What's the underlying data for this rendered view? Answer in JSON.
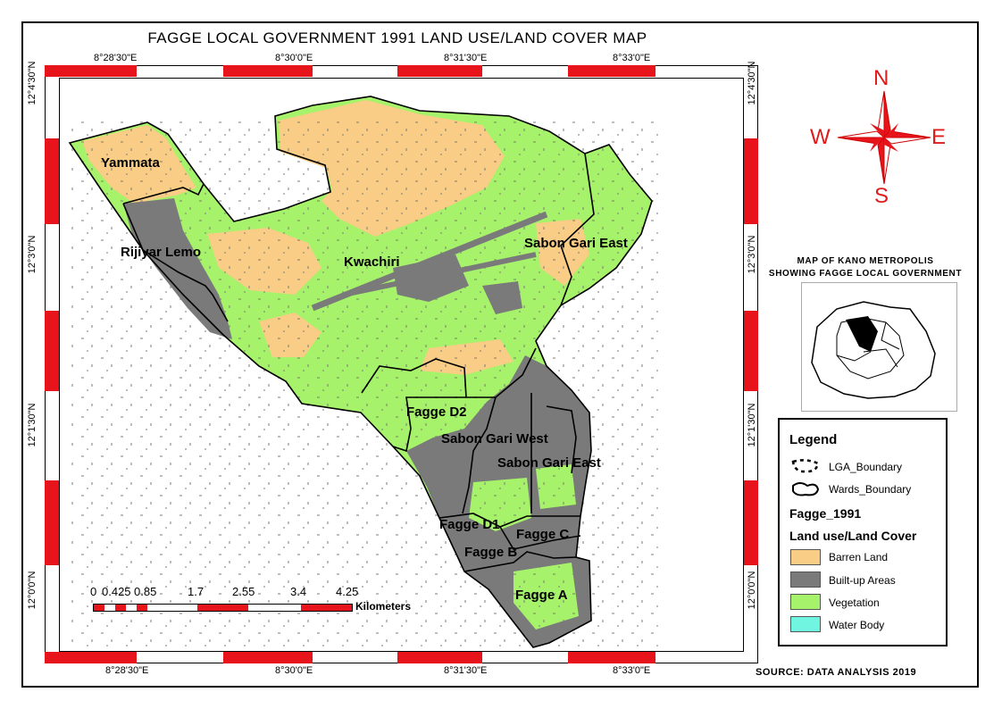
{
  "title": "FAGGE LOCAL GOVERNMENT 1991 LAND USE/LAND COVER MAP",
  "coords": {
    "top": [
      "8°28'30\"E",
      "8°30'0\"E",
      "8°31'30\"E",
      "8°33'0\"E"
    ],
    "bottom": [
      "8°28'30\"E",
      "8°30'0\"E",
      "8°31'30\"E",
      "8°33'0\"E"
    ],
    "left": [
      "12°4'30\"N",
      "12°3'0\"N",
      "12°1'30\"N",
      "12°0'0\"N"
    ],
    "right": [
      "12°4'30\"N",
      "12°3'0\"N",
      "12°1'30\"N",
      "12°0'0\"N"
    ]
  },
  "wards": {
    "yammata": "Yammata",
    "rijiyar_lemo": "Rijiyar Lemo",
    "kwachiri": "Kwachiri",
    "sabon_gari_east_1": "Sabon Gari East",
    "fagge_d2": "Fagge D2",
    "sabon_gari_west": "Sabon Gari West",
    "sabon_gari_east_2": "Sabon Gari East",
    "fagge_d1": "Fagge D1",
    "fagge_c": "Fagge C",
    "fagge_b": "Fagge B",
    "fagge_a": "Fagge A"
  },
  "north_arrow": {
    "n": "N",
    "s": "S",
    "e": "E",
    "w": "W"
  },
  "inset": {
    "title_line1": "MAP OF KANO METROPOLIS",
    "title_line2": "SHOWING FAGGE LOCAL GOVERNMENT"
  },
  "legend": {
    "title": "Legend",
    "lga_boundary": "LGA_Boundary",
    "wards_boundary": "Wards_Boundary",
    "layer": "Fagge_1991",
    "field": "Land use/Land Cover",
    "classes": [
      {
        "label": "Barren Land",
        "color": "#f9cd85"
      },
      {
        "label": "Built-up Areas",
        "color": "#7a7a7a"
      },
      {
        "label": "Vegetation",
        "color": "#a6f26a"
      },
      {
        "label": "Water Body",
        "color": "#6ff5e0"
      }
    ]
  },
  "scale_bar": {
    "labels": [
      "0",
      "0.425",
      "0.85",
      "1.7",
      "2.55",
      "3.4",
      "4.25"
    ],
    "unit": "Kilometers"
  },
  "source": "SOURCE: DATA ANALYSIS 2019"
}
